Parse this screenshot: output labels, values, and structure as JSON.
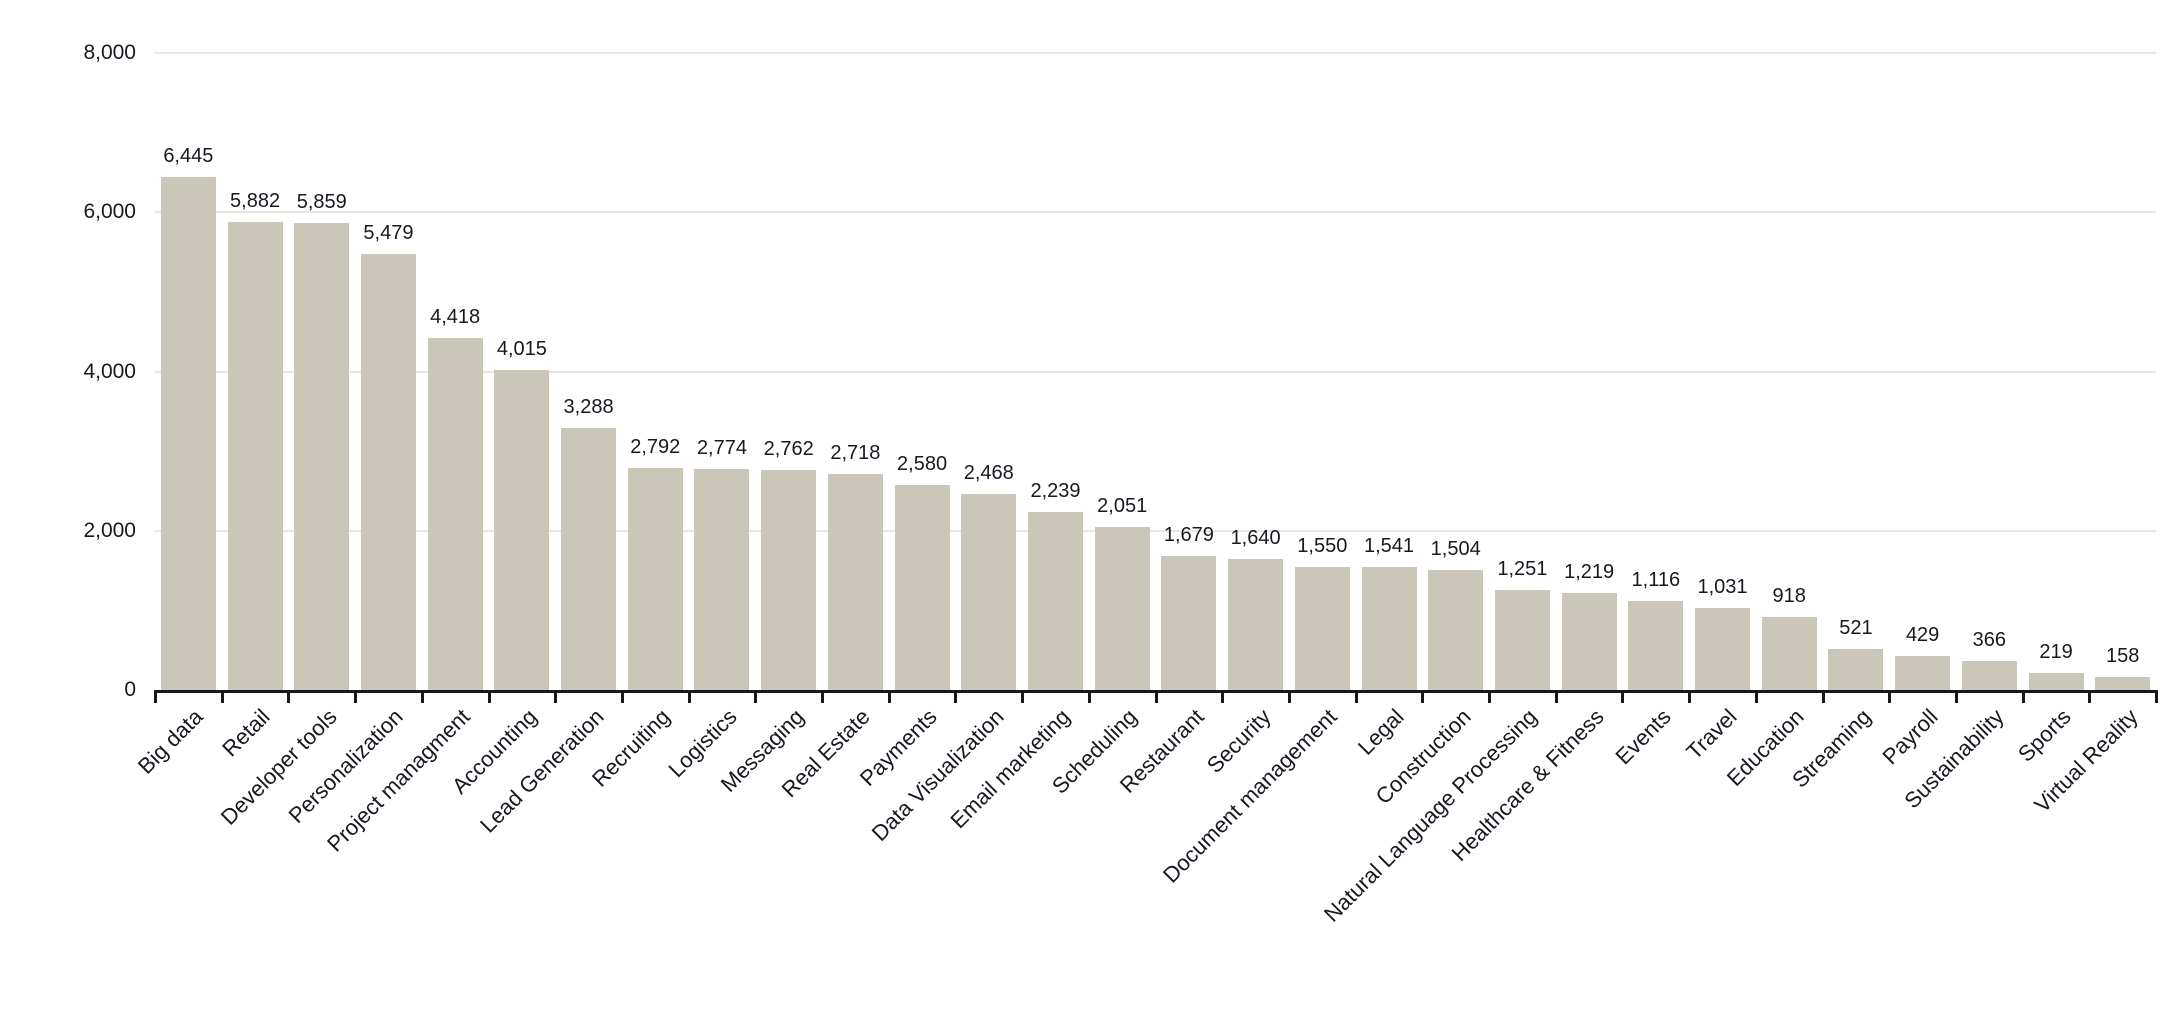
{
  "chart_data": {
    "type": "bar",
    "categories": [
      "Big data",
      "Retail",
      "Developer tools",
      "Personalization",
      "Project managment",
      "Accounting",
      "Lead Generation",
      "Recruiting",
      "Logistics",
      "Messaging",
      "Real Estate",
      "Payments",
      "Data Visualization",
      "Email marketing",
      "Scheduling",
      "Restaurant",
      "Security",
      "Document management",
      "Legal",
      "Construction",
      "Natural Language Processing",
      "Healthcare & Fitness",
      "Events",
      "Travel",
      "Education",
      "Streaming",
      "Payroll",
      "Sustainability",
      "Sports",
      "Virtual Reality"
    ],
    "values": [
      6445,
      5882,
      5859,
      5479,
      4418,
      4015,
      3288,
      2792,
      2774,
      2762,
      2718,
      2580,
      2468,
      2239,
      2051,
      1679,
      1640,
      1550,
      1541,
      1504,
      1251,
      1219,
      1116,
      1031,
      918,
      521,
      429,
      366,
      219,
      158
    ],
    "title": "",
    "xlabel": "",
    "ylabel": "",
    "ylim": [
      0,
      8000
    ],
    "y_ticks": [
      0,
      2000,
      4000,
      6000,
      8000
    ],
    "grid": "horizontal",
    "legend": "none",
    "bar_labels_shown": true,
    "colors": {
      "bar_fill": "#cbc7b8",
      "gridline": "#e8e7e4",
      "axis_line": "#17191c",
      "text": "#16191f"
    }
  }
}
